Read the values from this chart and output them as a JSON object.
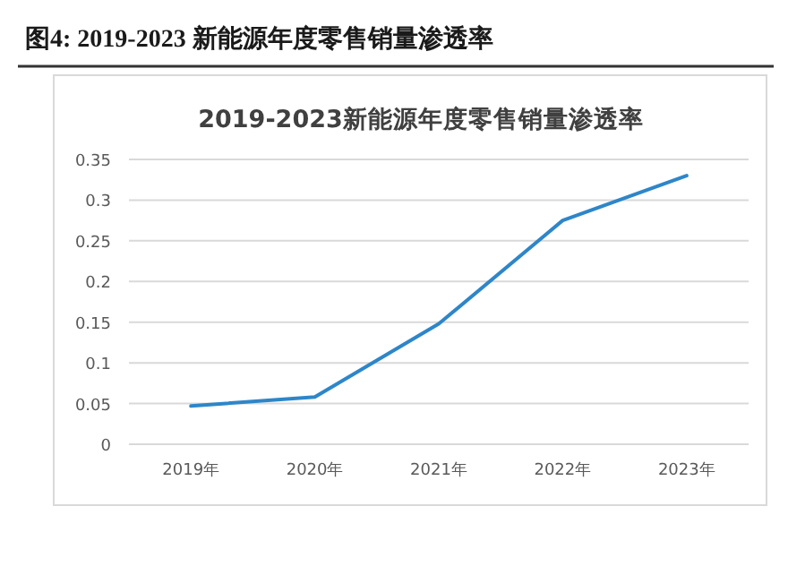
{
  "chart_data": {
    "type": "line",
    "title": "图4:  2019-2023 新能源年度零售销量渗透率",
    "subtitle": "2019-2023新能源年度零售销量渗透率",
    "categories": [
      "2019年",
      "2020年",
      "2021年",
      "2022年",
      "2023年"
    ],
    "series": [
      {
        "color": "#2e86c9",
        "values": [
          0.047,
          0.058,
          0.148,
          0.275,
          0.33
        ]
      }
    ],
    "ylim": [
      0,
      0.35
    ],
    "yticks": [
      0,
      0.05,
      0.1,
      0.15,
      0.2,
      0.25,
      0.3,
      0.35
    ],
    "grid": "y",
    "marker": "none",
    "line_style": "solid"
  }
}
